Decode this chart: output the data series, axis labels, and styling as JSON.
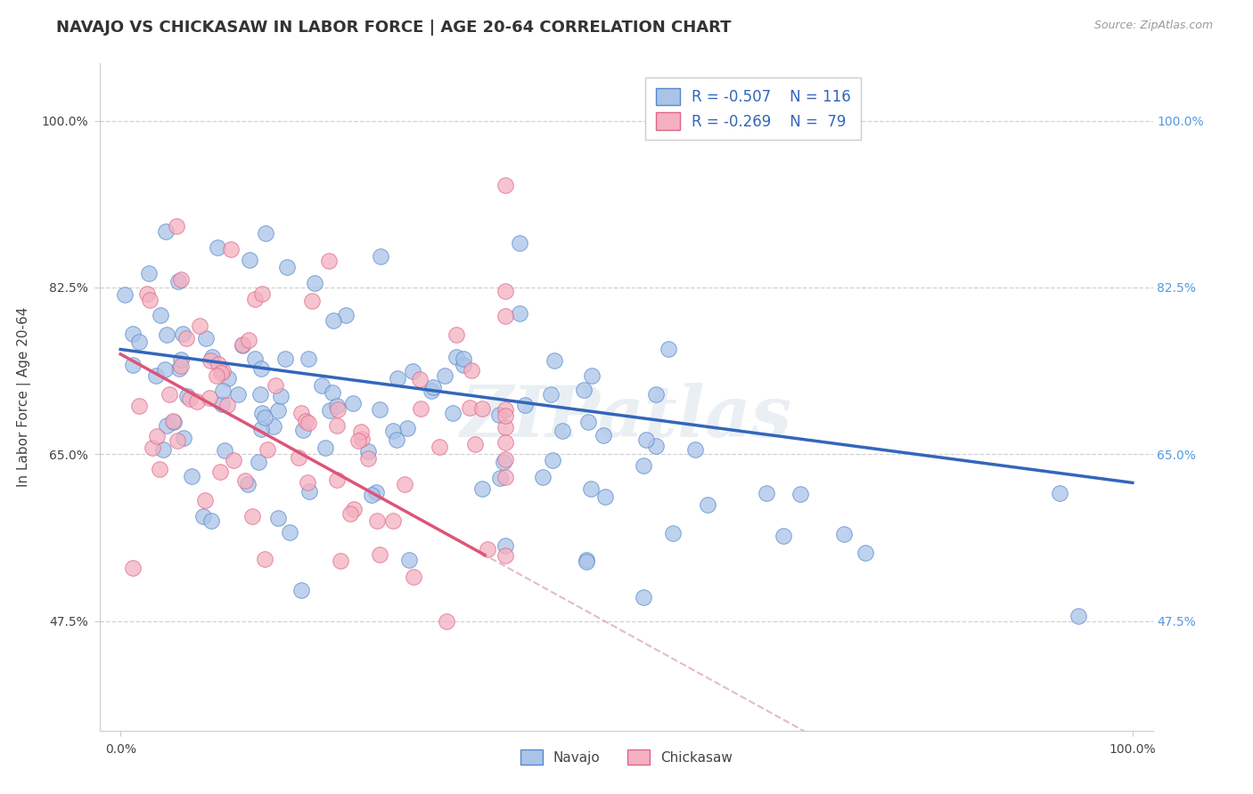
{
  "title": "NAVAJO VS CHICKASAW IN LABOR FORCE | AGE 20-64 CORRELATION CHART",
  "source_text": "Source: ZipAtlas.com",
  "ylabel": "In Labor Force | Age 20-64",
  "navajo_color": "#aac4e8",
  "navajo_edge_color": "#5588cc",
  "chickasaw_color": "#f4b0c0",
  "chickasaw_edge_color": "#dd6688",
  "navajo_line_color": "#3366bb",
  "chickasaw_line_color": "#dd5577",
  "dashed_color": "#ddbbcc",
  "legend_label_color": "#3366bb",
  "grid_color": "#cccccc",
  "watermark_text": "ZIPatlas",
  "background_color": "#ffffff",
  "xlim": [
    -0.02,
    1.02
  ],
  "ylim": [
    0.36,
    1.06
  ],
  "right_tick_color": "#5599dd",
  "title_fontsize": 13,
  "axis_label_fontsize": 11,
  "tick_fontsize": 10,
  "navajo_R": -0.507,
  "navajo_N": 116,
  "chickasaw_R": -0.269,
  "chickasaw_N": 79
}
